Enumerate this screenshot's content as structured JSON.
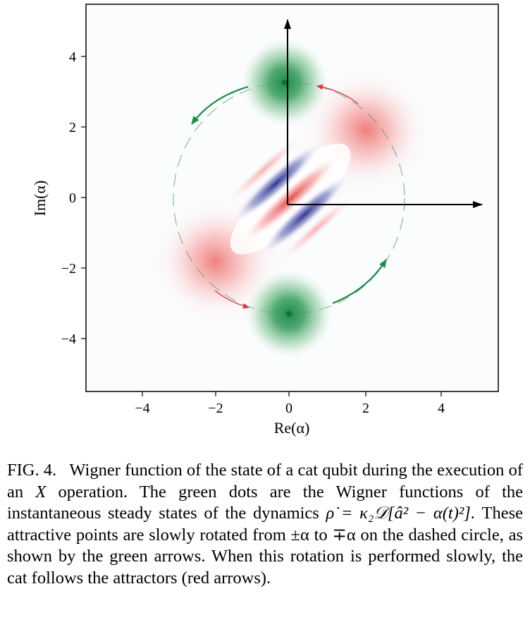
{
  "figure": {
    "xlabel": "Re(α)",
    "ylabel": "Im(α)",
    "xlim": [
      -5.5,
      5.5
    ],
    "ylim": [
      -5.5,
      5.5
    ],
    "xticks": [
      -4,
      -2,
      0,
      2,
      4
    ],
    "yticks": [
      -4,
      -2,
      0,
      2,
      4
    ],
    "xtick_labels": [
      "−4",
      "−2",
      "0",
      "2",
      "4"
    ],
    "ytick_labels": [
      "−4",
      "−2",
      "0",
      "2",
      "4"
    ],
    "green_color": "#1e8a48",
    "red_color": "#d93b3b",
    "blue_color": "#3a3d96"
  },
  "caption": {
    "label": "FIG. 4.",
    "part1": "Wigner function of the state of a cat qubit during the execution of an ",
    "x_op": "X",
    "part2": " operation. The green dots are the Wigner functions of the instantaneous steady states of the dynamics ",
    "equation": "ρ̇ = κ₂𝒟[â² − α(t)²]",
    "part3": ". These attractive points are slowly rotated from ±α to ∓α on the dashed circle, as shown by the green arrows. When this rotation is performed slowly, the cat follows the attractors (red arrows)."
  }
}
